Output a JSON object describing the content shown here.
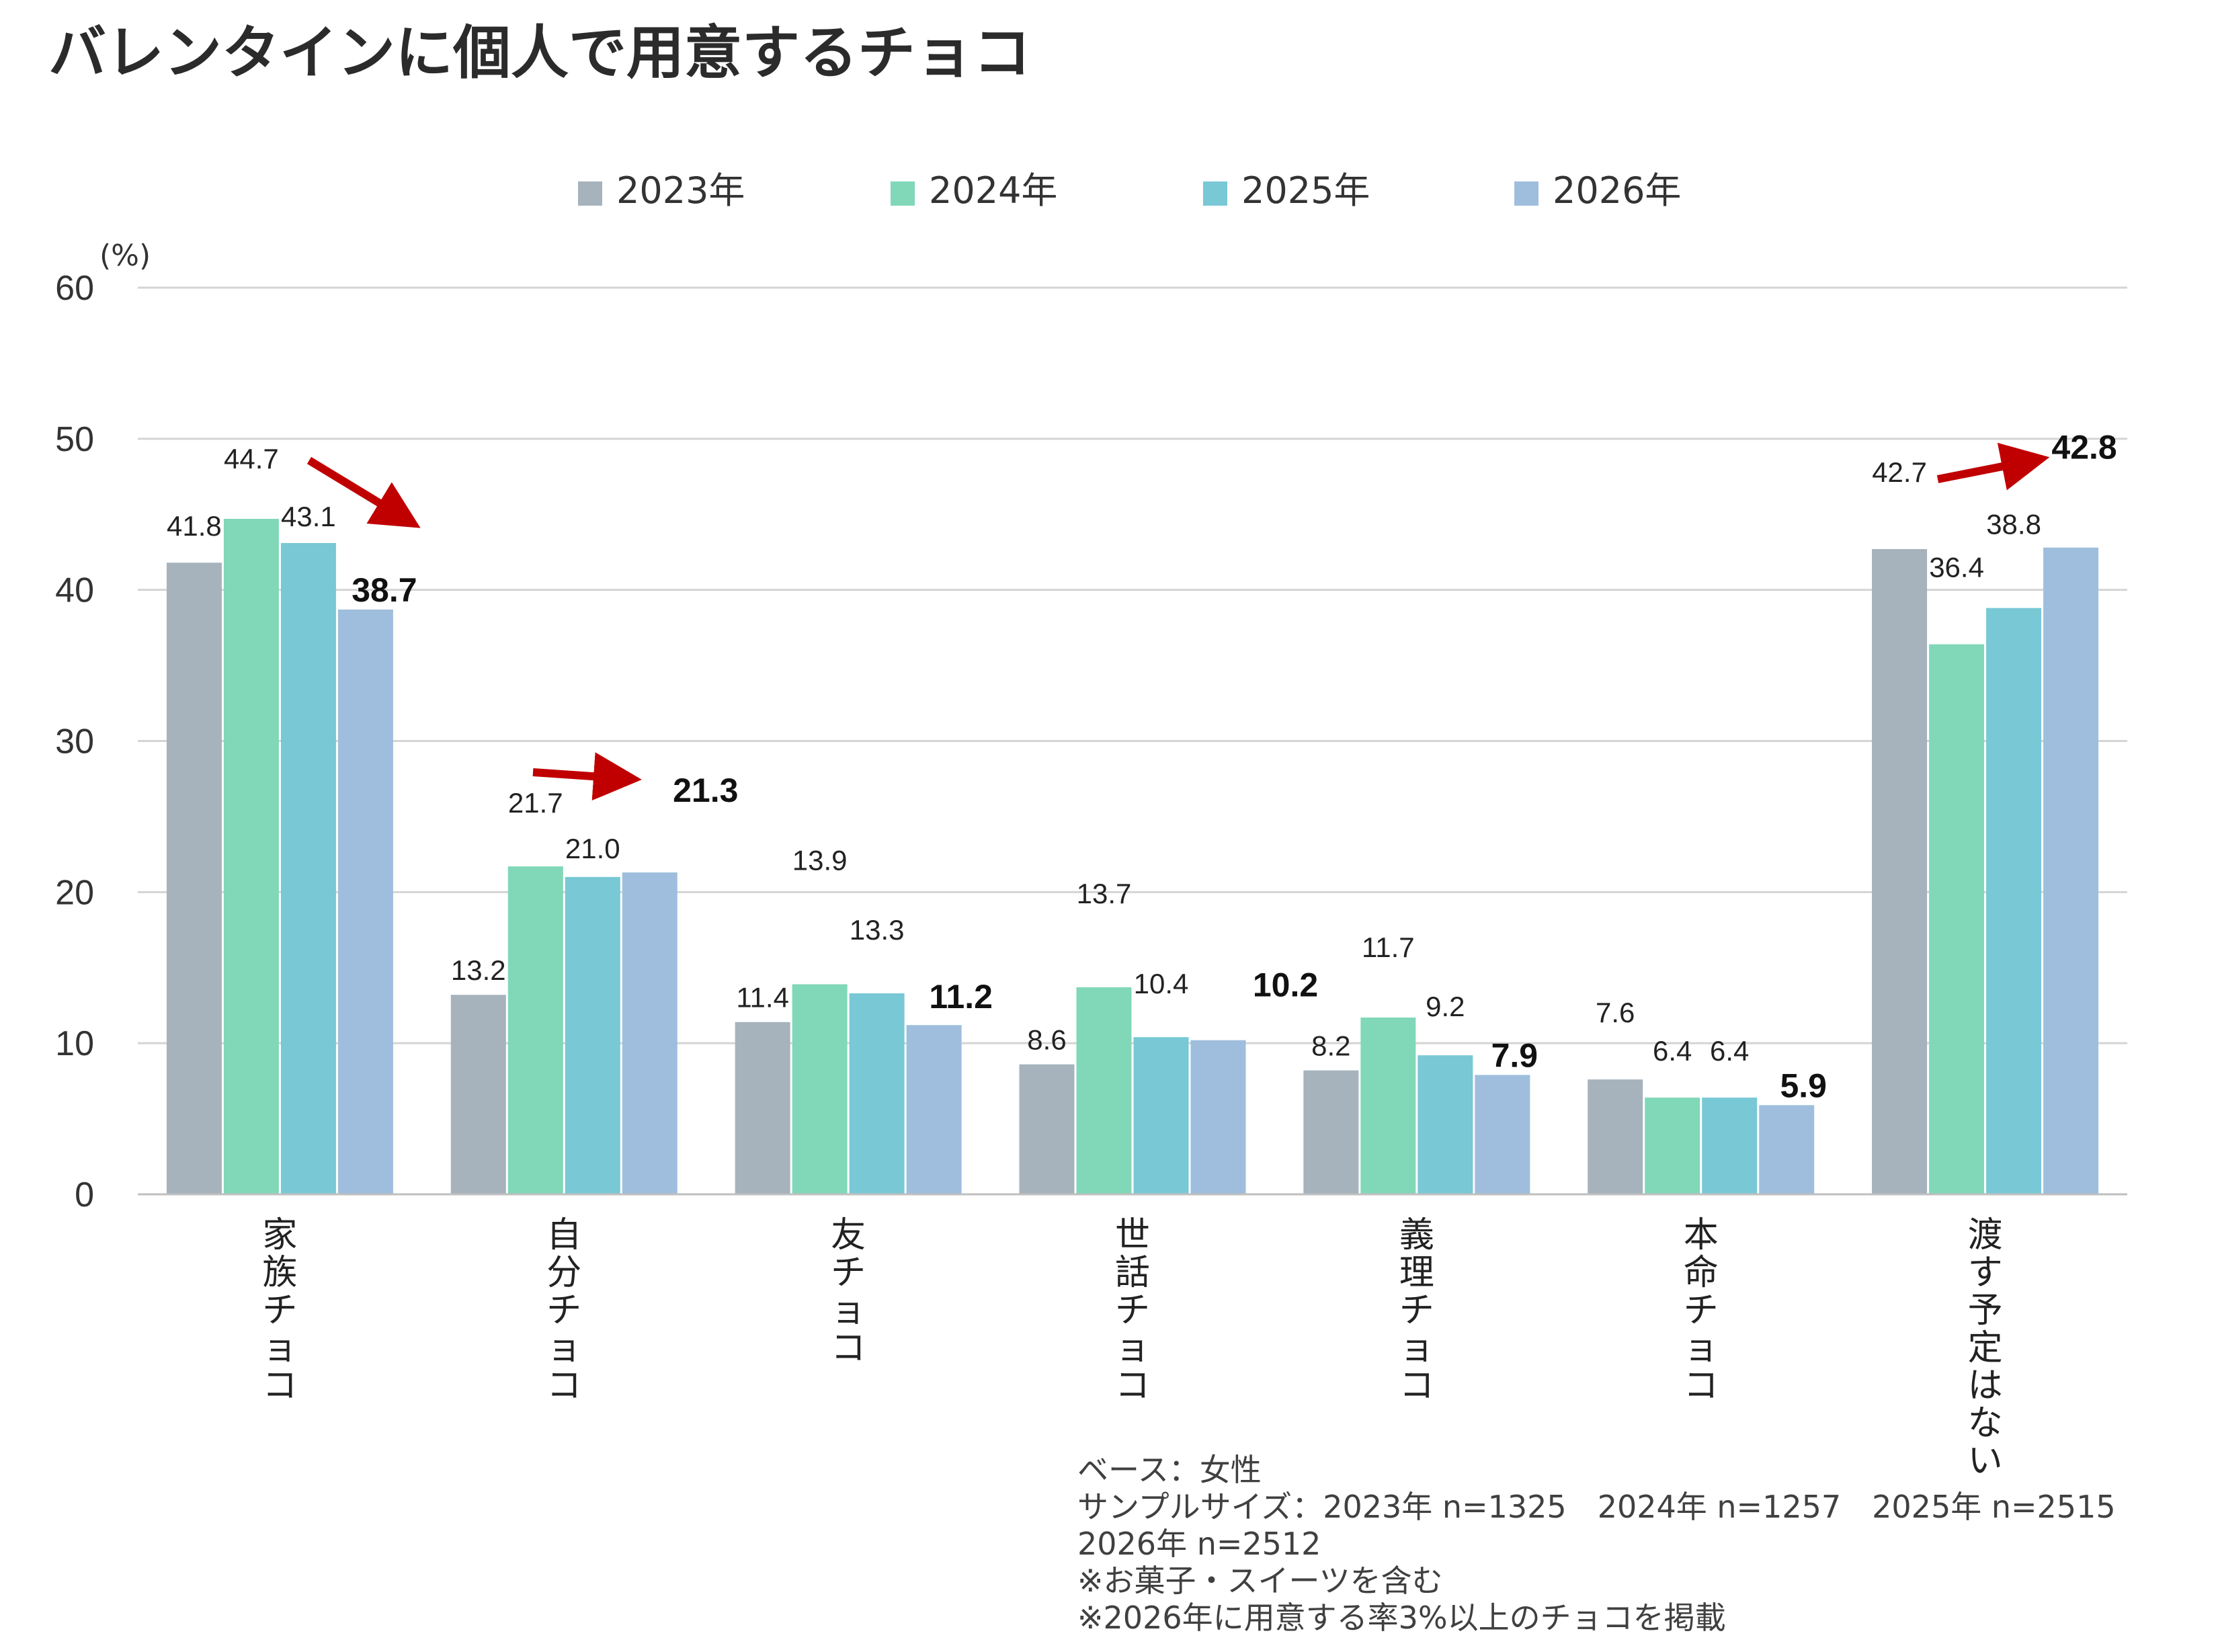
{
  "title": "バレンタインに個人で用意するチョコ",
  "chart_data": {
    "type": "bar",
    "title": "バレンタインに個人で用意するチョコ",
    "ylabel": "(%)",
    "ylim": [
      0,
      60
    ],
    "yticks": [
      0,
      10,
      20,
      30,
      40,
      50,
      60
    ],
    "grid": true,
    "legend_position": "top-center",
    "categories": [
      "家族チョコ",
      "自分チョコ",
      "友チョコ",
      "世話チョコ",
      "義理チョコ",
      "本命チョコ",
      "渡す予定はない"
    ],
    "series": [
      {
        "name": "2023年",
        "color": "#a6b3bc",
        "values": [
          41.8,
          13.2,
          11.4,
          8.6,
          8.2,
          7.6,
          42.7
        ]
      },
      {
        "name": "2024年",
        "color": "#80d8b8",
        "values": [
          44.7,
          21.7,
          13.9,
          13.7,
          11.7,
          6.4,
          36.4
        ]
      },
      {
        "name": "2025年",
        "color": "#78c8d6",
        "values": [
          43.1,
          21.0,
          13.3,
          10.4,
          9.2,
          6.4,
          38.8
        ]
      },
      {
        "name": "2026年",
        "color": "#9fbedd",
        "values": [
          38.7,
          21.3,
          11.2,
          10.2,
          7.9,
          5.9,
          42.8
        ]
      }
    ],
    "highlight_series": "2026年",
    "trend_arrows": [
      "家族チョコ",
      "自分チョコ",
      "渡す予定はない"
    ],
    "arrow_color": "#c00000"
  },
  "notes": [
    "ベース：女性",
    "サンプルサイズ：2023年 n=1325　2024年 n=1257　2025年 n=2515",
    "2026年 n=2512",
    "※お菓子・スイーツを含む",
    "※2026年に用意する率3%以上のチョコを掲載"
  ]
}
